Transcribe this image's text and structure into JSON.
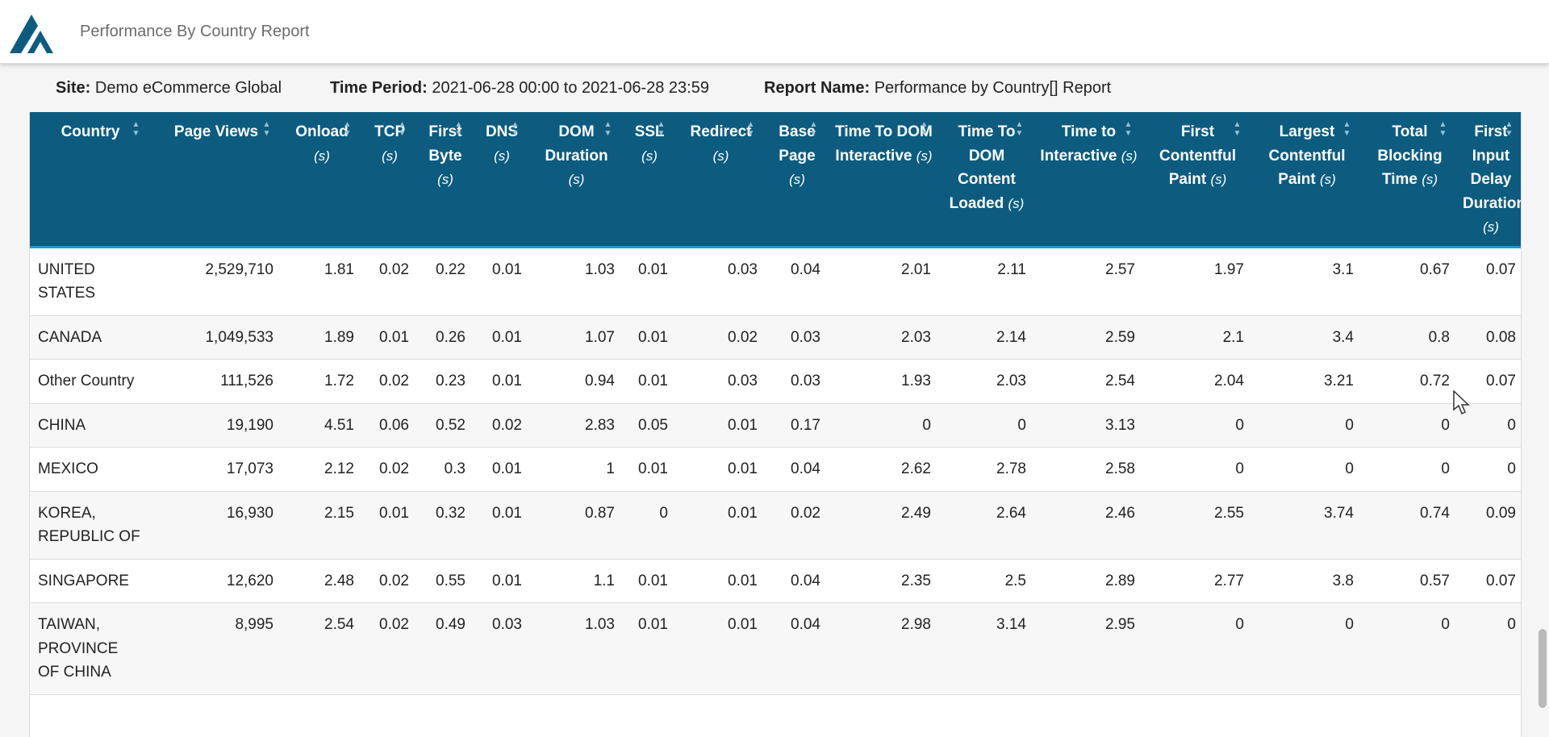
{
  "app": {
    "title": "Performance By Country Report",
    "logo_icon": "triangle-logo-icon"
  },
  "info": {
    "site_label": "Site:",
    "site_value": "Demo eCommerce Global",
    "period_label": "Time Period:",
    "period_value": "2021-06-28 00:00 to 2021-06-28 23:59",
    "report_label": "Report Name:",
    "report_value": "Performance by Country[] Report"
  },
  "colors": {
    "header_bg": "#0d5c80",
    "header_border": "#1a9ad6"
  },
  "table": {
    "columns": [
      {
        "label": "Country",
        "unit": ""
      },
      {
        "label": "Page Views",
        "unit": ""
      },
      {
        "label": "Onload",
        "unit": "(s)"
      },
      {
        "label": "TCP",
        "unit": "(s)"
      },
      {
        "label": "First Byte",
        "unit": "(s)"
      },
      {
        "label": "DNS",
        "unit": "(s)"
      },
      {
        "label": "DOM Duration",
        "unit": "(s)"
      },
      {
        "label": "SSL",
        "unit": "(s)"
      },
      {
        "label": "Redirect",
        "unit": "(s)"
      },
      {
        "label": "Base Page",
        "unit": "(s)"
      },
      {
        "label": "Time To DOM Interactive",
        "unit": "(s)"
      },
      {
        "label": "Time To DOM Content Loaded",
        "unit": "(s)"
      },
      {
        "label": "Time to Interactive",
        "unit": "(s)"
      },
      {
        "label": "First Contentful Paint",
        "unit": "(s)"
      },
      {
        "label": "Largest Contentful Paint",
        "unit": "(s)"
      },
      {
        "label": "Total Blocking Time",
        "unit": "(s)"
      },
      {
        "label": "First Input Delay Duration",
        "unit": "(s)"
      }
    ],
    "rows": [
      [
        "UNITED STATES",
        "2,529,710",
        "1.81",
        "0.02",
        "0.22",
        "0.01",
        "1.03",
        "0.01",
        "0.03",
        "0.04",
        "2.01",
        "2.11",
        "2.57",
        "1.97",
        "3.1",
        "0.67",
        "0.07"
      ],
      [
        "CANADA",
        "1,049,533",
        "1.89",
        "0.01",
        "0.26",
        "0.01",
        "1.07",
        "0.01",
        "0.02",
        "0.03",
        "2.03",
        "2.14",
        "2.59",
        "2.1",
        "3.4",
        "0.8",
        "0.08"
      ],
      [
        "Other Country",
        "111,526",
        "1.72",
        "0.02",
        "0.23",
        "0.01",
        "0.94",
        "0.01",
        "0.03",
        "0.03",
        "1.93",
        "2.03",
        "2.54",
        "2.04",
        "3.21",
        "0.72",
        "0.07"
      ],
      [
        "CHINA",
        "19,190",
        "4.51",
        "0.06",
        "0.52",
        "0.02",
        "2.83",
        "0.05",
        "0.01",
        "0.17",
        "0",
        "0",
        "3.13",
        "0",
        "0",
        "0",
        "0"
      ],
      [
        "MEXICO",
        "17,073",
        "2.12",
        "0.02",
        "0.3",
        "0.01",
        "1",
        "0.01",
        "0.01",
        "0.04",
        "2.62",
        "2.78",
        "2.58",
        "0",
        "0",
        "0",
        "0"
      ],
      [
        "KOREA, REPUBLIC OF",
        "16,930",
        "2.15",
        "0.01",
        "0.32",
        "0.01",
        "0.87",
        "0",
        "0.01",
        "0.02",
        "2.49",
        "2.64",
        "2.46",
        "2.55",
        "3.74",
        "0.74",
        "0.09"
      ],
      [
        "SINGAPORE",
        "12,620",
        "2.48",
        "0.02",
        "0.55",
        "0.01",
        "1.1",
        "0.01",
        "0.01",
        "0.04",
        "2.35",
        "2.5",
        "2.89",
        "2.77",
        "3.8",
        "0.57",
        "0.07"
      ],
      [
        "TAIWAN, PROVINCE OF CHINA",
        "8,995",
        "2.54",
        "0.02",
        "0.49",
        "0.03",
        "1.03",
        "0.01",
        "0.01",
        "0.04",
        "2.98",
        "3.14",
        "2.95",
        "0",
        "0",
        "0",
        "0"
      ]
    ]
  }
}
